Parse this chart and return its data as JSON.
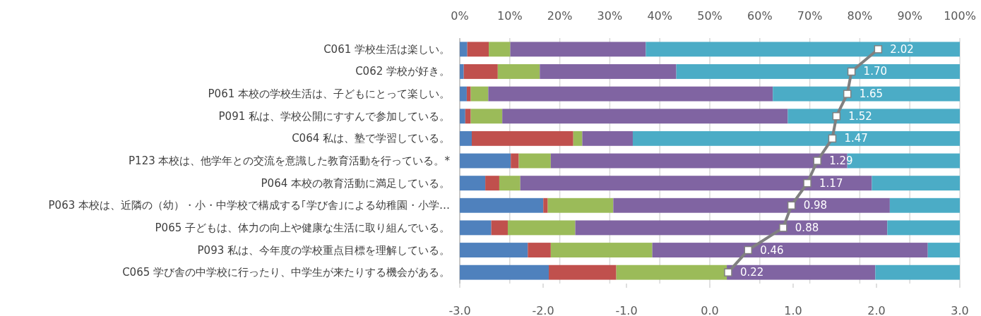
{
  "chart_data": {
    "type": "bar",
    "orientation": "horizontal",
    "stacked": true,
    "grid": "x",
    "categories": [
      "C061 学校生活は楽しい。",
      "C062 学校が好き。",
      "P061 本校の学校生活は、子どもにとって楽しい。",
      "P091 私は、学校公開にすすんで参加している。",
      "C064 私は、塾で学習している。",
      "P123 本校は、他学年との交流を意識した教育活動を行っている。*",
      "P064 本校の教育活動に満足している。",
      "P063 本校は、近隣の（幼）・小・中学校で構成する｢学び舎｣による幼稚園・小学…",
      "P065 子どもは、体力の向上や健康な生活に取り組んでいる。",
      "P093 私は、今年度の学校重点目標を理解している。",
      "C065 学び舎の中学校に行ったり、中学生が来たりする機会がある。"
    ],
    "xlim": [
      0,
      100
    ],
    "xticks": [
      {
        "value": 0,
        "label": "0%"
      },
      {
        "value": 10,
        "label": "10%"
      },
      {
        "value": 20,
        "label": "20%"
      },
      {
        "value": 30,
        "label": "30%"
      },
      {
        "value": 40,
        "label": "40%"
      },
      {
        "value": 50,
        "label": "50%"
      },
      {
        "value": 60,
        "label": "60%"
      },
      {
        "value": 70,
        "label": "70%"
      },
      {
        "value": 80,
        "label": "80%"
      },
      {
        "value": 90,
        "label": "90%"
      },
      {
        "value": 100,
        "label": "100%"
      }
    ],
    "x2lim": [
      -3,
      3
    ],
    "x2ticks": [
      {
        "value": -3,
        "label": "-3.0"
      },
      {
        "value": -2,
        "label": "-2.0"
      },
      {
        "value": -1,
        "label": "-1.0"
      },
      {
        "value": 0,
        "label": "0.0"
      },
      {
        "value": 1,
        "label": "1.0"
      },
      {
        "value": 2,
        "label": "2.0"
      },
      {
        "value": 3,
        "label": "3.0"
      }
    ],
    "series": [
      {
        "color": "#4f81bd",
        "values": [
          1.5,
          0.8,
          1.4,
          1.1,
          2.4,
          10.2,
          5.1,
          16.7,
          6.3,
          13.6,
          17.8
        ]
      },
      {
        "color": "#c0504d",
        "values": [
          4.3,
          6.8,
          0.8,
          1.1,
          20.3,
          1.6,
          2.8,
          0.9,
          3.3,
          4.6,
          13.5
        ]
      },
      {
        "color": "#9bbb59",
        "values": [
          4.3,
          8.4,
          3.5,
          6.3,
          1.8,
          6.4,
          4.2,
          13.1,
          13.5,
          20.3,
          22.1
        ]
      },
      {
        "color": "#8064a2",
        "values": [
          27.1,
          27.3,
          56.9,
          57.1,
          10.1,
          59.3,
          70.3,
          55.3,
          62.4,
          55.1,
          29.7
        ]
      },
      {
        "color": "#4bacc6",
        "values": [
          62.8,
          56.7,
          37.4,
          34.4,
          65.4,
          22.5,
          17.6,
          14.0,
          14.5,
          6.4,
          16.9
        ]
      },
      {
        "type": "line",
        "axis": "x2",
        "color": "#808080",
        "marker": "square",
        "value_labels": [
          "2.02",
          "1.70",
          "1.65",
          "1.52",
          "1.47",
          "1.29",
          "1.17",
          "0.98",
          "0.88",
          "0.46",
          "0.22"
        ],
        "values": [
          2.02,
          1.7,
          1.65,
          1.52,
          1.47,
          1.29,
          1.17,
          0.98,
          0.88,
          0.46,
          0.22
        ]
      }
    ]
  }
}
